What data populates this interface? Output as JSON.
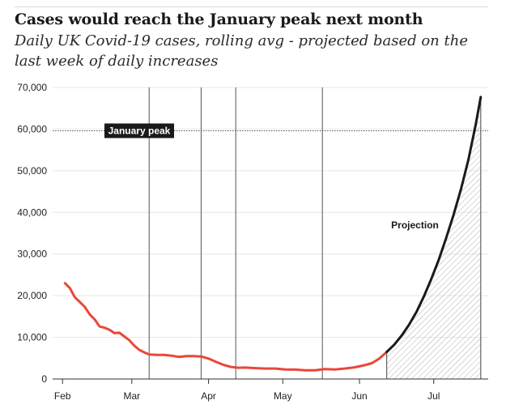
{
  "header": {
    "title": "Cases would reach the January peak next month",
    "subtitle": "Daily UK Covid-19 cases, rolling avg - projected based on the last week of daily increases"
  },
  "chart_data": {
    "type": "line",
    "y_ticks": [
      0,
      10000,
      20000,
      30000,
      40000,
      50000,
      60000,
      70000
    ],
    "y_tick_labels": [
      "0",
      "10,000",
      "20,000",
      "30,000",
      "40,000",
      "50,000",
      "60,000",
      "70,000"
    ],
    "ylim": [
      0,
      70000
    ],
    "x_ticks": [
      "2021-02-01",
      "2021-03-01",
      "2021-04-01",
      "2021-05-01",
      "2021-06-01",
      "2021-07-01"
    ],
    "x_tick_labels": [
      "Feb",
      "Mar",
      "Apr",
      "May",
      "Jun",
      "Jul"
    ],
    "xlim": [
      "2021-01-28",
      "2021-07-23"
    ],
    "reference_line": {
      "label": "January peak",
      "value": 59600
    },
    "vertical_lines": [
      "2021-03-08",
      "2021-03-29",
      "2021-04-12",
      "2021-05-17"
    ],
    "series": [
      {
        "kind": "actual",
        "color": "#e8473a",
        "x": [
          "2021-02-02",
          "2021-02-04",
          "2021-02-06",
          "2021-02-08",
          "2021-02-10",
          "2021-02-12",
          "2021-02-14",
          "2021-02-16",
          "2021-02-18",
          "2021-02-20",
          "2021-02-22",
          "2021-02-24",
          "2021-02-26",
          "2021-02-28",
          "2021-03-02",
          "2021-03-04",
          "2021-03-06",
          "2021-03-08",
          "2021-03-11",
          "2021-03-14",
          "2021-03-17",
          "2021-03-20",
          "2021-03-23",
          "2021-03-26",
          "2021-03-29",
          "2021-04-01",
          "2021-04-04",
          "2021-04-07",
          "2021-04-10",
          "2021-04-13",
          "2021-04-16",
          "2021-04-20",
          "2021-04-24",
          "2021-04-28",
          "2021-05-02",
          "2021-05-06",
          "2021-05-10",
          "2021-05-14",
          "2021-05-18",
          "2021-05-22",
          "2021-05-26",
          "2021-05-30",
          "2021-06-03",
          "2021-06-06",
          "2021-06-09",
          "2021-06-12"
        ],
        "y": [
          23000,
          21800,
          19600,
          18500,
          17300,
          15500,
          14300,
          12600,
          12300,
          11800,
          11000,
          11100,
          10200,
          9300,
          8000,
          7000,
          6400,
          5900,
          5800,
          5800,
          5600,
          5300,
          5500,
          5500,
          5400,
          4900,
          4100,
          3400,
          2900,
          2700,
          2750,
          2600,
          2500,
          2500,
          2300,
          2250,
          2100,
          2100,
          2400,
          2300,
          2500,
          2800,
          3300,
          3800,
          4900,
          6500
        ]
      },
      {
        "kind": "projection",
        "label": "Projection",
        "color": "#1a1a1a",
        "x": [
          "2021-06-12",
          "2021-06-15",
          "2021-06-18",
          "2021-06-21",
          "2021-06-24",
          "2021-06-27",
          "2021-06-30",
          "2021-07-03",
          "2021-07-06",
          "2021-07-09",
          "2021-07-12",
          "2021-07-15",
          "2021-07-18",
          "2021-07-20"
        ],
        "y": [
          6500,
          8200,
          10400,
          13000,
          16100,
          19800,
          24000,
          28600,
          33800,
          39400,
          45600,
          52600,
          61200,
          67700
        ]
      }
    ]
  }
}
